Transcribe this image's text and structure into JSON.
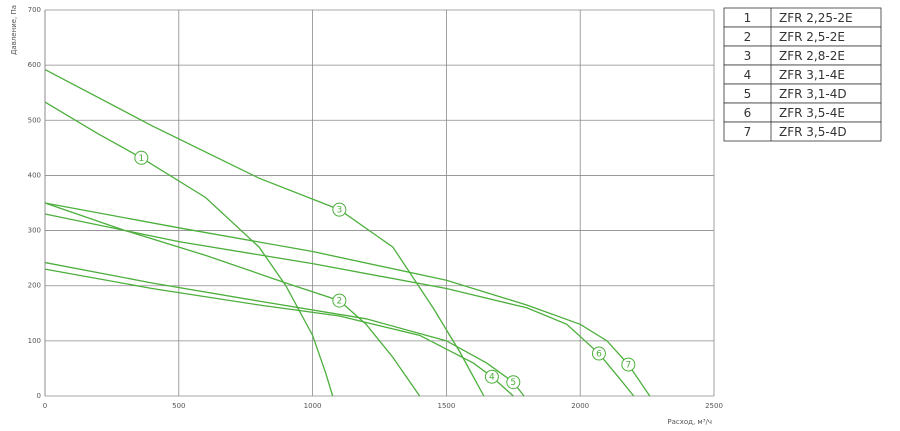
{
  "chart_data": {
    "type": "line",
    "y_label": "Давление, Па",
    "x_label": "Расход, м³/ч",
    "xlim": [
      0,
      2500
    ],
    "xticks": [
      0,
      500,
      1000,
      1500,
      2000,
      2500
    ],
    "ylim": [
      0,
      700
    ],
    "yticks": [
      0,
      100,
      200,
      300,
      400,
      500,
      600,
      700
    ],
    "grid": true,
    "series": [
      {
        "label": "1",
        "name": "ZFR 2,25-2E",
        "color": "#4caf3c",
        "x": [
          0,
          200,
          360,
          600,
          800,
          900,
          1000,
          1050,
          1075
        ],
        "values": [
          533,
          475,
          432,
          360,
          270,
          200,
          110,
          40,
          0
        ]
      },
      {
        "label": "2",
        "name": "ZFR 2,5-2E",
        "color": "#4caf3c",
        "x": [
          0,
          300,
          600,
          900,
          1100,
          1200,
          1300,
          1400
        ],
        "values": [
          350,
          300,
          255,
          205,
          173,
          130,
          70,
          0
        ]
      },
      {
        "label": "3",
        "name": "ZFR 2,8-2E",
        "color": "#4caf3c",
        "x": [
          0,
          400,
          800,
          1100,
          1300,
          1450,
          1550,
          1640
        ],
        "values": [
          592,
          490,
          395,
          338,
          270,
          160,
          80,
          0
        ]
      },
      {
        "label": "4",
        "name": "ZFR 3,1-4E",
        "color": "#4caf3c",
        "x": [
          0,
          400,
          800,
          1100,
          1400,
          1600,
          1670,
          1750
        ],
        "values": [
          230,
          195,
          165,
          145,
          110,
          60,
          35,
          0
        ]
      },
      {
        "label": "5",
        "name": "ZFR 3,1-4D",
        "color": "#4caf3c",
        "x": [
          0,
          400,
          800,
          1200,
          1500,
          1650,
          1750,
          1790
        ],
        "values": [
          242,
          205,
          172,
          140,
          100,
          60,
          25,
          0
        ]
      },
      {
        "label": "6",
        "name": "ZFR 3,5-4E",
        "color": "#4caf3c",
        "x": [
          0,
          500,
          1000,
          1500,
          1800,
          1950,
          2070,
          2150,
          2200
        ],
        "values": [
          330,
          280,
          240,
          195,
          160,
          130,
          77,
          30,
          0
        ]
      },
      {
        "label": "7",
        "name": "ZFR 3,5-4D",
        "color": "#4caf3c",
        "x": [
          0,
          500,
          1000,
          1500,
          1800,
          2000,
          2100,
          2180,
          2260
        ],
        "values": [
          350,
          305,
          262,
          210,
          165,
          130,
          100,
          57,
          0
        ]
      }
    ]
  }
}
